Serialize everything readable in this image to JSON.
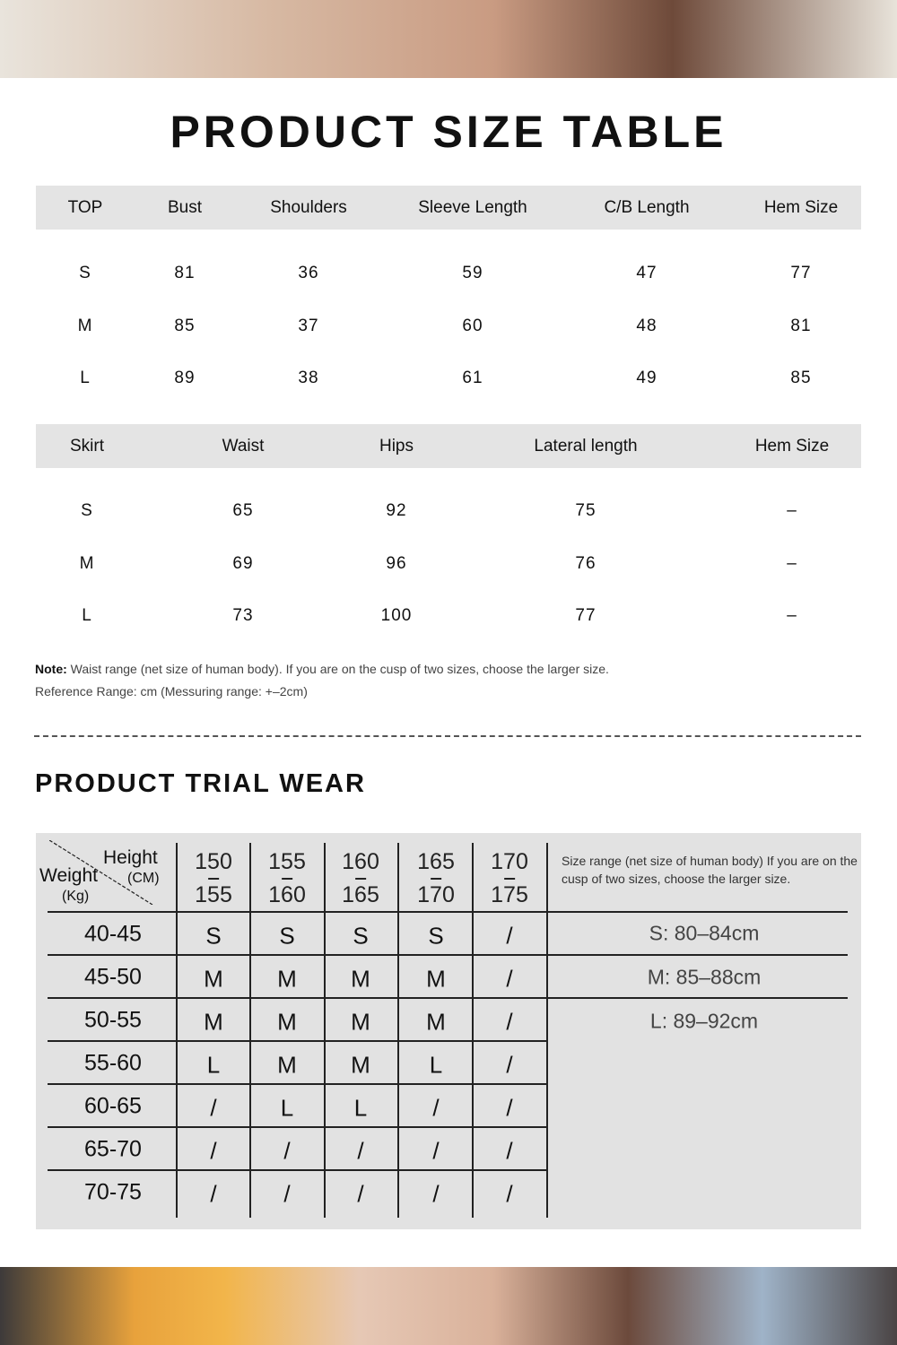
{
  "title": "PRODUCT SIZE TABLE",
  "top_table": {
    "headers": [
      "TOP",
      "Bust",
      "Shoulders",
      "Sleeve Length",
      "C/B  Length",
      "Hem Size"
    ],
    "rows": [
      [
        "S",
        "81",
        "36",
        "59",
        "47",
        "77"
      ],
      [
        "M",
        "85",
        "37",
        "60",
        "48",
        "81"
      ],
      [
        "L",
        "89",
        "38",
        "61",
        "49",
        "85"
      ]
    ]
  },
  "skirt_table": {
    "headers": [
      "Skirt",
      "Waist",
      "Hips",
      "Lateral length",
      "Hem Size"
    ],
    "rows": [
      [
        "S",
        "65",
        "92",
        "75",
        "–"
      ],
      [
        "M",
        "69",
        "96",
        "76",
        "–"
      ],
      [
        "L",
        "73",
        "100",
        "77",
        "–"
      ]
    ]
  },
  "notes": {
    "note_label": "Note:",
    "note_text": " Waist range (net size of human body). If you are on the cusp of two sizes, choose the larger size.",
    "reference": "Reference Range: cm (Messuring range: +–2cm)"
  },
  "trial_wear": {
    "title": "PRODUCT TRIAL WEAR",
    "corner": {
      "height": "Height",
      "height_unit": "(CM)",
      "weight": "Weight",
      "weight_unit": "(Kg)"
    },
    "height_ranges": [
      [
        "150",
        "155"
      ],
      [
        "155",
        "160"
      ],
      [
        "160",
        "165"
      ],
      [
        "165",
        "170"
      ],
      [
        "170",
        "175"
      ]
    ],
    "rows": [
      {
        "weight": "40-45",
        "sizes": [
          "S",
          "S",
          "S",
          "S",
          "/"
        ]
      },
      {
        "weight": "45-50",
        "sizes": [
          "M",
          "M",
          "M",
          "M",
          "/"
        ]
      },
      {
        "weight": "50-55",
        "sizes": [
          "M",
          "M",
          "M",
          "M",
          "/"
        ]
      },
      {
        "weight": "55-60",
        "sizes": [
          "L",
          "M",
          "M",
          "L",
          "/"
        ]
      },
      {
        "weight": "60-65",
        "sizes": [
          "/",
          "L",
          "L",
          "/",
          "/"
        ]
      },
      {
        "weight": "65-70",
        "sizes": [
          "/",
          "/",
          "/",
          "/",
          "/"
        ]
      },
      {
        "weight": "70-75",
        "sizes": [
          "/",
          "/",
          "/",
          "/",
          "/"
        ]
      }
    ],
    "size_range_note": "Size range (net size of human body) If you are on the cusp of two sizes, choose the larger size.",
    "size_ranges": [
      "S: 80–84cm",
      "M: 85–88cm",
      "L: 89–92cm"
    ]
  }
}
